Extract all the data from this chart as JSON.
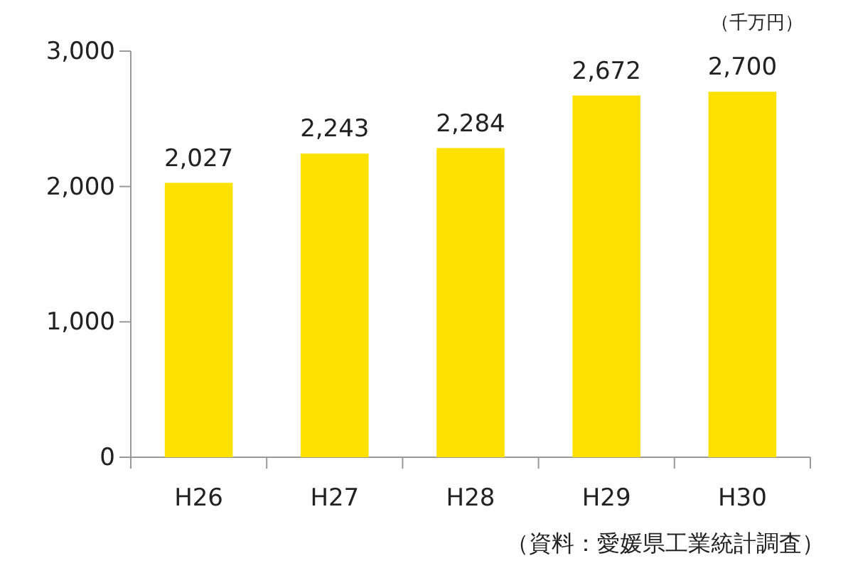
{
  "chart_data": {
    "type": "bar",
    "ylabel": "（千万円）",
    "categories": [
      "H26",
      "H27",
      "H28",
      "H29",
      "H30"
    ],
    "values": [
      2027,
      2243,
      2284,
      2672,
      2700
    ],
    "color": "#ffe100",
    "ylim": [
      0,
      3000
    ],
    "yticks": [
      0,
      {
        "value": 1000,
        "label": "1,000"
      },
      {
        "value": 2000,
        "label": "2,000"
      },
      {
        "value": 3000,
        "label": "3,000"
      }
    ],
    "value_labels": [
      "2,027",
      "2,243",
      "2,284",
      "2,672",
      "2,700"
    ],
    "grid": false,
    "annotations": [
      "（資料：愛媛県工業統計調査）"
    ]
  }
}
